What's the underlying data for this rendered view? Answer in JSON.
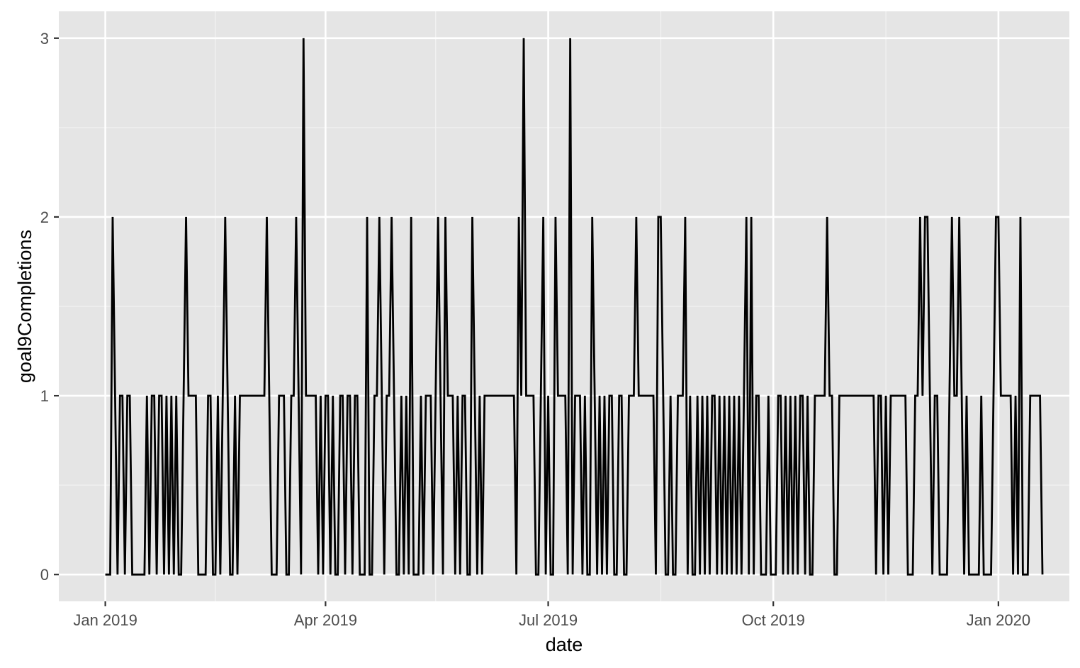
{
  "chart_data": {
    "type": "line",
    "title": "",
    "xlabel": "date",
    "ylabel": "goal9Completions",
    "x_range": [
      "2018-12-13",
      "2020-01-30"
    ],
    "ylim": [
      -0.15,
      3.15
    ],
    "x_ticks": [
      {
        "date": "2019-01-01",
        "label": "Jan 2019"
      },
      {
        "date": "2019-04-01",
        "label": "Apr 2019"
      },
      {
        "date": "2019-07-01",
        "label": "Jul 2019"
      },
      {
        "date": "2019-10-01",
        "label": "Oct 2019"
      },
      {
        "date": "2020-01-01",
        "label": "Jan 2020"
      }
    ],
    "x_minor_ticks": [
      "2019-02-15",
      "2019-05-16",
      "2019-08-16",
      "2019-11-16"
    ],
    "y_ticks": [
      0,
      1,
      2,
      3
    ],
    "y_minor_ticks": [
      0.5,
      1.5,
      2.5
    ],
    "grid": true,
    "background": "#e5e5e5",
    "line_color": "#000000",
    "series": [
      {
        "start_date": "2019-01-01",
        "end_date": "2020-01-19",
        "nonzero_points": [
          [
            "2019-01-04",
            2
          ],
          [
            "2019-01-05",
            1
          ],
          [
            "2019-01-07",
            1
          ],
          [
            "2019-01-08",
            1
          ],
          [
            "2019-01-10",
            1
          ],
          [
            "2019-01-11",
            1
          ],
          [
            "2019-01-18",
            1
          ],
          [
            "2019-01-20",
            1
          ],
          [
            "2019-01-21",
            1
          ],
          [
            "2019-01-23",
            1
          ],
          [
            "2019-01-24",
            1
          ],
          [
            "2019-01-26",
            1
          ],
          [
            "2019-01-28",
            1
          ],
          [
            "2019-01-30",
            1
          ],
          [
            "2019-02-02",
            1
          ],
          [
            "2019-02-03",
            2
          ],
          [
            "2019-02-04",
            1
          ],
          [
            "2019-02-05",
            1
          ],
          [
            "2019-02-06",
            1
          ],
          [
            "2019-02-07",
            1
          ],
          [
            "2019-02-12",
            1
          ],
          [
            "2019-02-13",
            1
          ],
          [
            "2019-02-16",
            1
          ],
          [
            "2019-02-18",
            1
          ],
          [
            "2019-02-19",
            2
          ],
          [
            "2019-02-20",
            1
          ],
          [
            "2019-02-23",
            1
          ],
          [
            "2019-02-25",
            1
          ],
          [
            "2019-02-26",
            1
          ],
          [
            "2019-02-27",
            1
          ],
          [
            "2019-02-28",
            1
          ],
          [
            "2019-03-01",
            1
          ],
          [
            "2019-03-02",
            1
          ],
          [
            "2019-03-03",
            1
          ],
          [
            "2019-03-04",
            1
          ],
          [
            "2019-03-05",
            1
          ],
          [
            "2019-03-06",
            1
          ],
          [
            "2019-03-07",
            1
          ],
          [
            "2019-03-08",
            2
          ],
          [
            "2019-03-09",
            1
          ],
          [
            "2019-03-13",
            1
          ],
          [
            "2019-03-14",
            1
          ],
          [
            "2019-03-15",
            1
          ],
          [
            "2019-03-18",
            1
          ],
          [
            "2019-03-19",
            1
          ],
          [
            "2019-03-20",
            2
          ],
          [
            "2019-03-21",
            1
          ],
          [
            "2019-03-23",
            3
          ],
          [
            "2019-03-24",
            1
          ],
          [
            "2019-03-25",
            1
          ],
          [
            "2019-03-26",
            1
          ],
          [
            "2019-03-27",
            1
          ],
          [
            "2019-03-28",
            1
          ],
          [
            "2019-03-30",
            1
          ],
          [
            "2019-04-01",
            1
          ],
          [
            "2019-04-02",
            1
          ],
          [
            "2019-04-04",
            1
          ],
          [
            "2019-04-07",
            1
          ],
          [
            "2019-04-08",
            1
          ],
          [
            "2019-04-10",
            1
          ],
          [
            "2019-04-11",
            1
          ],
          [
            "2019-04-13",
            1
          ],
          [
            "2019-04-14",
            1
          ],
          [
            "2019-04-18",
            2
          ],
          [
            "2019-04-21",
            1
          ],
          [
            "2019-04-22",
            1
          ],
          [
            "2019-04-23",
            2
          ],
          [
            "2019-04-24",
            1
          ],
          [
            "2019-04-26",
            1
          ],
          [
            "2019-04-27",
            1
          ],
          [
            "2019-04-28",
            2
          ],
          [
            "2019-04-29",
            1
          ],
          [
            "2019-05-02",
            1
          ],
          [
            "2019-05-04",
            1
          ],
          [
            "2019-05-06",
            2
          ],
          [
            "2019-05-10",
            1
          ],
          [
            "2019-05-12",
            1
          ],
          [
            "2019-05-13",
            1
          ],
          [
            "2019-05-14",
            1
          ],
          [
            "2019-05-16",
            1
          ],
          [
            "2019-05-17",
            2
          ],
          [
            "2019-05-18",
            1
          ],
          [
            "2019-05-20",
            2
          ],
          [
            "2019-05-21",
            1
          ],
          [
            "2019-05-22",
            1
          ],
          [
            "2019-05-23",
            1
          ],
          [
            "2019-05-25",
            1
          ],
          [
            "2019-05-27",
            1
          ],
          [
            "2019-05-28",
            1
          ],
          [
            "2019-05-31",
            2
          ],
          [
            "2019-06-01",
            1
          ],
          [
            "2019-06-03",
            1
          ],
          [
            "2019-06-05",
            1
          ],
          [
            "2019-06-06",
            1
          ],
          [
            "2019-06-07",
            1
          ],
          [
            "2019-06-08",
            1
          ],
          [
            "2019-06-09",
            1
          ],
          [
            "2019-06-10",
            1
          ],
          [
            "2019-06-11",
            1
          ],
          [
            "2019-06-12",
            1
          ],
          [
            "2019-06-13",
            1
          ],
          [
            "2019-06-14",
            1
          ],
          [
            "2019-06-15",
            1
          ],
          [
            "2019-06-16",
            1
          ],
          [
            "2019-06-17",
            1
          ],
          [
            "2019-06-19",
            2
          ],
          [
            "2019-06-20",
            1
          ],
          [
            "2019-06-21",
            3
          ],
          [
            "2019-06-22",
            1
          ],
          [
            "2019-06-23",
            1
          ],
          [
            "2019-06-24",
            1
          ],
          [
            "2019-06-25",
            1
          ],
          [
            "2019-06-28",
            1
          ],
          [
            "2019-06-29",
            2
          ],
          [
            "2019-07-01",
            1
          ],
          [
            "2019-07-04",
            2
          ],
          [
            "2019-07-05",
            1
          ],
          [
            "2019-07-06",
            1
          ],
          [
            "2019-07-07",
            1
          ],
          [
            "2019-07-08",
            1
          ],
          [
            "2019-07-10",
            3
          ],
          [
            "2019-07-12",
            1
          ],
          [
            "2019-07-13",
            1
          ],
          [
            "2019-07-14",
            1
          ],
          [
            "2019-07-16",
            1
          ],
          [
            "2019-07-19",
            2
          ],
          [
            "2019-07-20",
            1
          ],
          [
            "2019-07-22",
            1
          ],
          [
            "2019-07-24",
            1
          ],
          [
            "2019-07-26",
            1
          ],
          [
            "2019-07-27",
            1
          ],
          [
            "2019-07-30",
            1
          ],
          [
            "2019-07-31",
            1
          ],
          [
            "2019-08-03",
            1
          ],
          [
            "2019-08-04",
            1
          ],
          [
            "2019-08-05",
            1
          ],
          [
            "2019-08-06",
            2
          ],
          [
            "2019-08-07",
            1
          ],
          [
            "2019-08-08",
            1
          ],
          [
            "2019-08-09",
            1
          ],
          [
            "2019-08-10",
            1
          ],
          [
            "2019-08-11",
            1
          ],
          [
            "2019-08-12",
            1
          ],
          [
            "2019-08-13",
            1
          ],
          [
            "2019-08-15",
            2
          ],
          [
            "2019-08-16",
            2
          ],
          [
            "2019-08-17",
            1
          ],
          [
            "2019-08-20",
            1
          ],
          [
            "2019-08-23",
            1
          ],
          [
            "2019-08-24",
            1
          ],
          [
            "2019-08-25",
            1
          ],
          [
            "2019-08-26",
            2
          ],
          [
            "2019-08-28",
            1
          ],
          [
            "2019-08-31",
            1
          ],
          [
            "2019-09-02",
            1
          ],
          [
            "2019-09-04",
            1
          ],
          [
            "2019-09-06",
            1
          ],
          [
            "2019-09-07",
            1
          ],
          [
            "2019-09-09",
            1
          ],
          [
            "2019-09-11",
            1
          ],
          [
            "2019-09-13",
            1
          ],
          [
            "2019-09-15",
            1
          ],
          [
            "2019-09-17",
            1
          ],
          [
            "2019-09-19",
            1
          ],
          [
            "2019-09-20",
            2
          ],
          [
            "2019-09-22",
            2
          ],
          [
            "2019-09-24",
            1
          ],
          [
            "2019-09-25",
            1
          ],
          [
            "2019-09-29",
            1
          ],
          [
            "2019-10-03",
            1
          ],
          [
            "2019-10-04",
            1
          ],
          [
            "2019-10-06",
            1
          ],
          [
            "2019-10-08",
            1
          ],
          [
            "2019-10-10",
            1
          ],
          [
            "2019-10-12",
            1
          ],
          [
            "2019-10-13",
            1
          ],
          [
            "2019-10-15",
            1
          ],
          [
            "2019-10-18",
            1
          ],
          [
            "2019-10-19",
            1
          ],
          [
            "2019-10-20",
            1
          ],
          [
            "2019-10-21",
            1
          ],
          [
            "2019-10-22",
            1
          ],
          [
            "2019-10-23",
            2
          ],
          [
            "2019-10-24",
            1
          ],
          [
            "2019-10-25",
            1
          ],
          [
            "2019-10-28",
            1
          ],
          [
            "2019-10-29",
            1
          ],
          [
            "2019-10-30",
            1
          ],
          [
            "2019-10-31",
            1
          ],
          [
            "2019-11-01",
            1
          ],
          [
            "2019-11-02",
            1
          ],
          [
            "2019-11-03",
            1
          ],
          [
            "2019-11-04",
            1
          ],
          [
            "2019-11-05",
            1
          ],
          [
            "2019-11-06",
            1
          ],
          [
            "2019-11-07",
            1
          ],
          [
            "2019-11-08",
            1
          ],
          [
            "2019-11-09",
            1
          ],
          [
            "2019-11-10",
            1
          ],
          [
            "2019-11-11",
            1
          ],
          [
            "2019-11-13",
            1
          ],
          [
            "2019-11-14",
            1
          ],
          [
            "2019-11-16",
            1
          ],
          [
            "2019-11-18",
            1
          ],
          [
            "2019-11-19",
            1
          ],
          [
            "2019-11-20",
            1
          ],
          [
            "2019-11-21",
            1
          ],
          [
            "2019-11-22",
            1
          ],
          [
            "2019-11-23",
            1
          ],
          [
            "2019-11-24",
            1
          ],
          [
            "2019-11-28",
            1
          ],
          [
            "2019-11-29",
            1
          ],
          [
            "2019-11-30",
            2
          ],
          [
            "2019-12-01",
            1
          ],
          [
            "2019-12-02",
            2
          ],
          [
            "2019-12-03",
            2
          ],
          [
            "2019-12-04",
            1
          ],
          [
            "2019-12-06",
            1
          ],
          [
            "2019-12-07",
            1
          ],
          [
            "2019-12-12",
            1
          ],
          [
            "2019-12-13",
            2
          ],
          [
            "2019-12-14",
            1
          ],
          [
            "2019-12-15",
            1
          ],
          [
            "2019-12-16",
            2
          ],
          [
            "2019-12-17",
            1
          ],
          [
            "2019-12-19",
            1
          ],
          [
            "2019-12-25",
            1
          ],
          [
            "2019-12-30",
            1
          ],
          [
            "2019-12-31",
            2
          ],
          [
            "2020-01-01",
            2
          ],
          [
            "2020-01-02",
            1
          ],
          [
            "2020-01-03",
            1
          ],
          [
            "2020-01-04",
            1
          ],
          [
            "2020-01-05",
            1
          ],
          [
            "2020-01-06",
            1
          ],
          [
            "2020-01-08",
            1
          ],
          [
            "2020-01-10",
            2
          ],
          [
            "2020-01-14",
            1
          ],
          [
            "2020-01-15",
            1
          ],
          [
            "2020-01-16",
            1
          ],
          [
            "2020-01-17",
            1
          ],
          [
            "2020-01-18",
            1
          ]
        ]
      }
    ]
  }
}
